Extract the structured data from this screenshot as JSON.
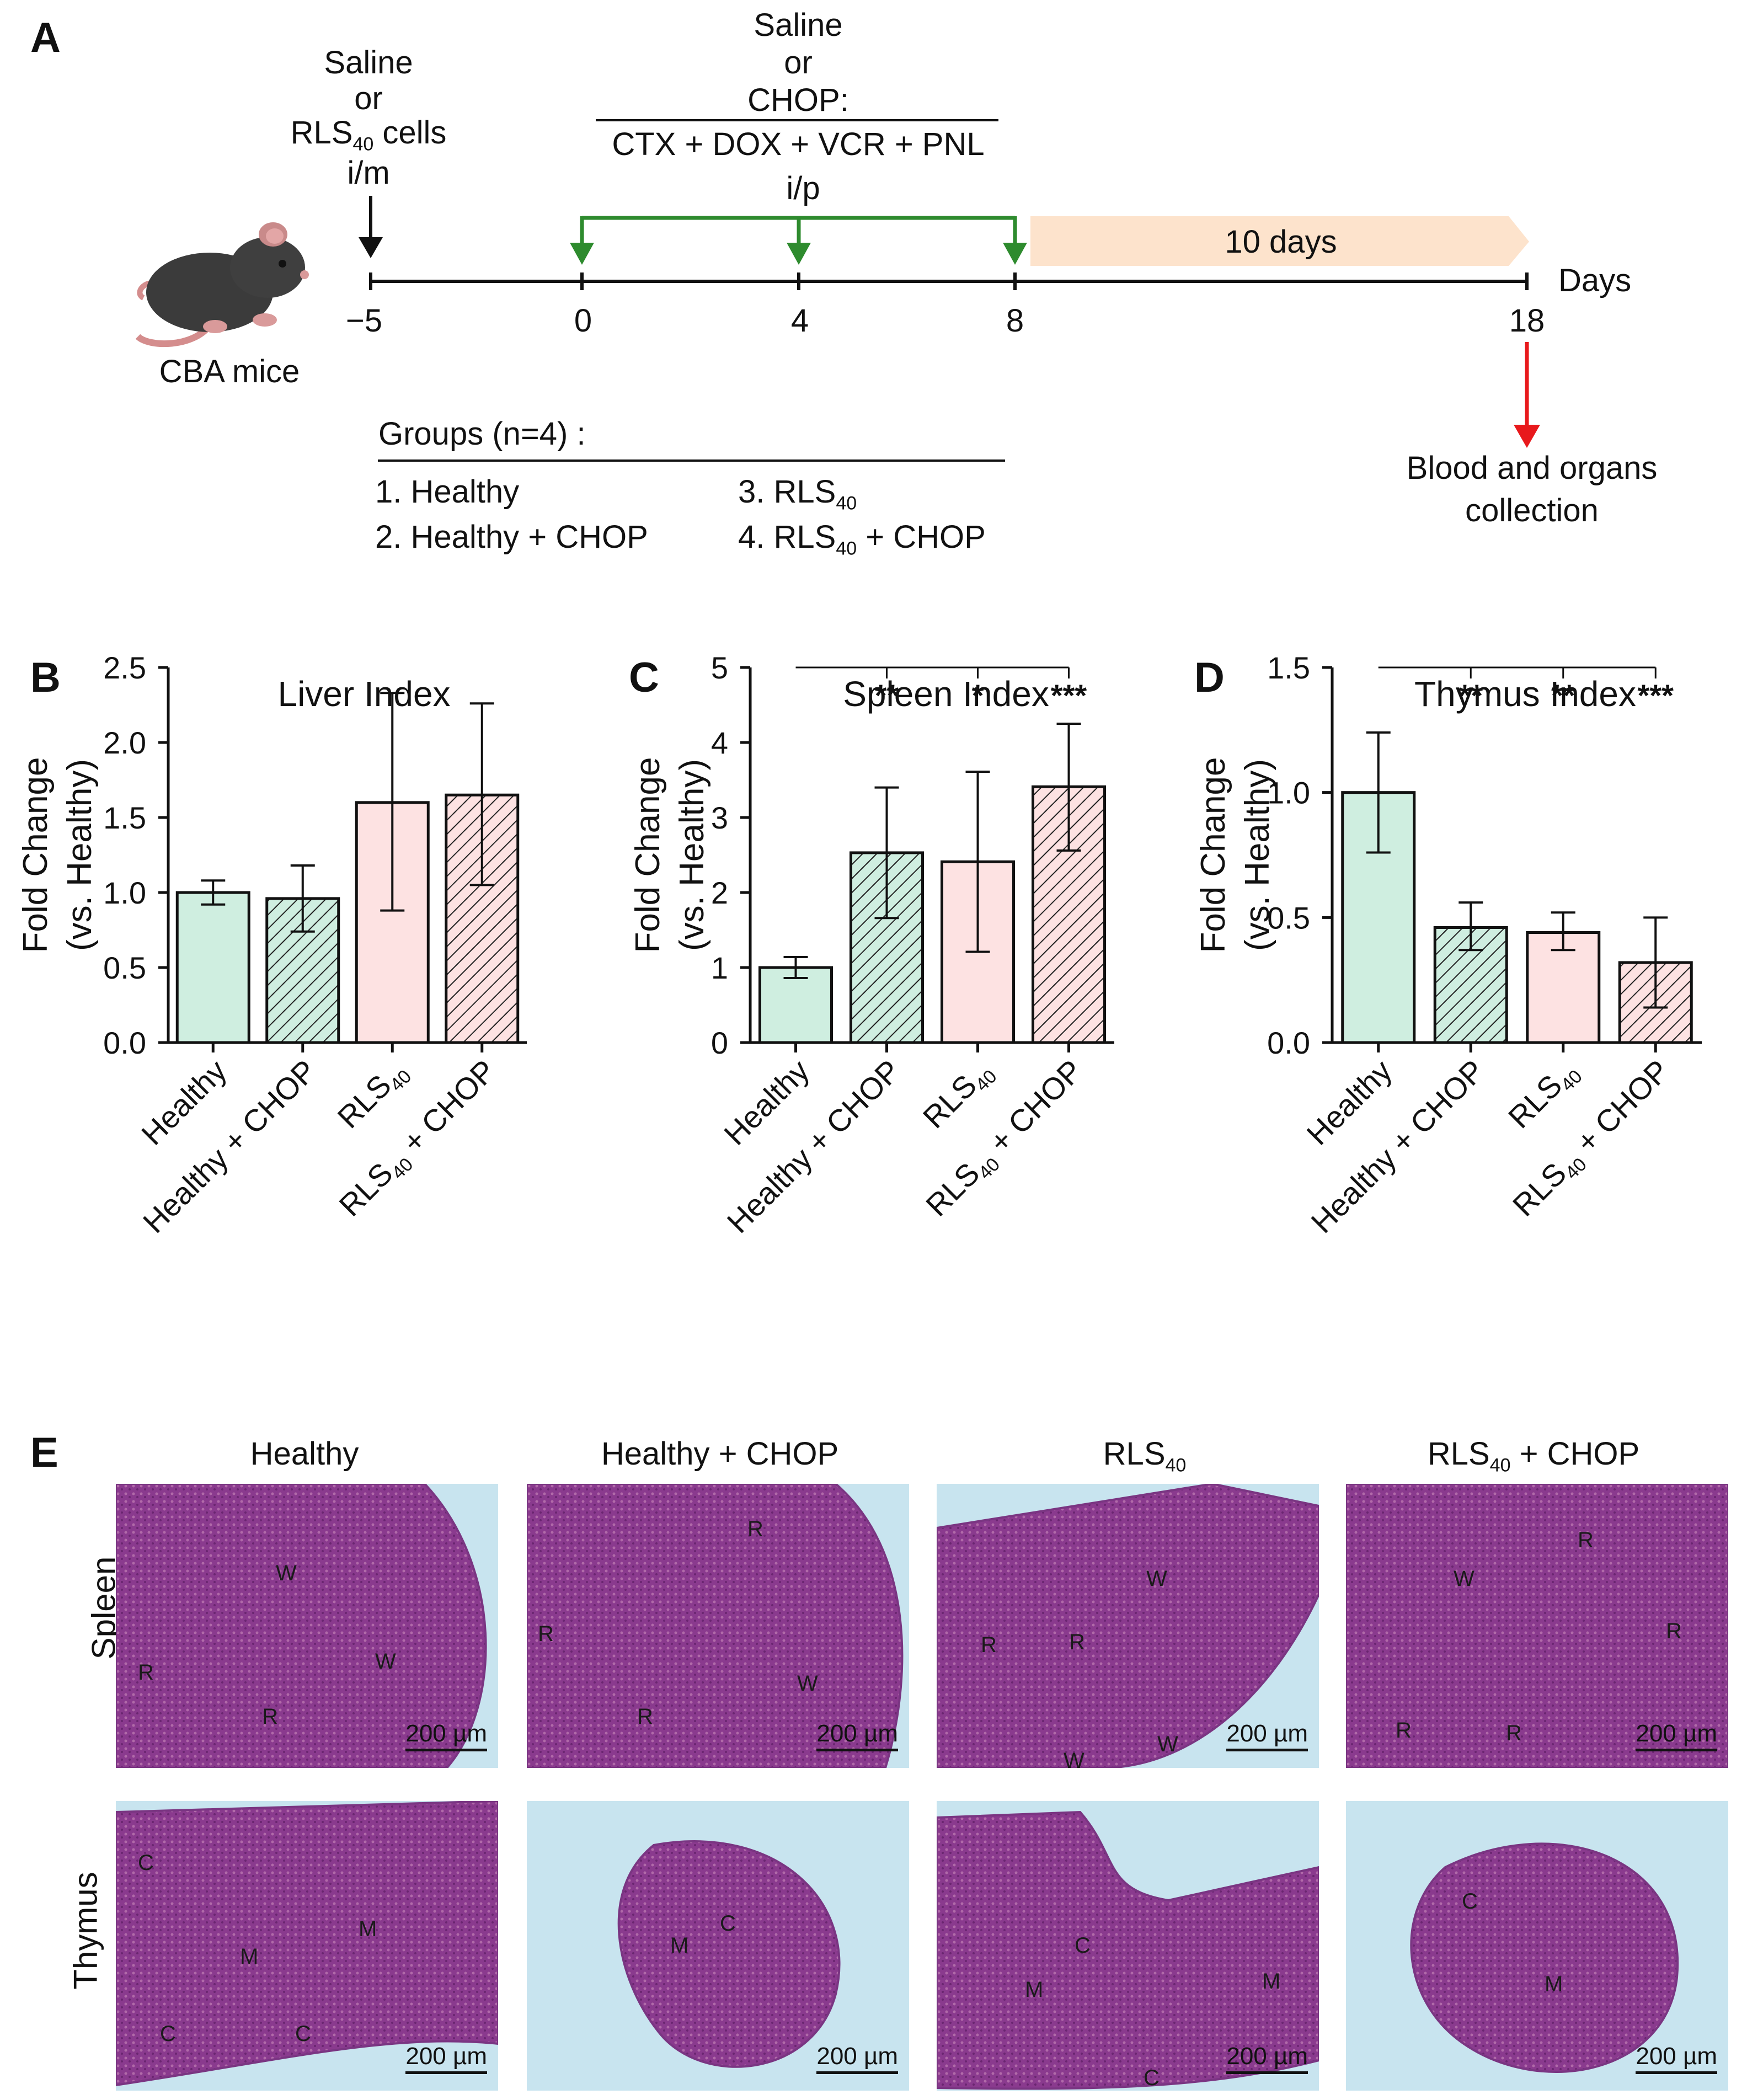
{
  "panel_A": {
    "letter": "A",
    "mouse_label": "CBA mice",
    "inoculation": {
      "line1": "Saline",
      "line2": "or",
      "line3_pre": "RLS",
      "line3_sub": "40",
      "line3_post": " cells",
      "line4": "i/m"
    },
    "treatment": {
      "line1": "Saline",
      "line2": "or",
      "line3": "CHOP:",
      "line4": "CTX + DOX + VCR + PNL",
      "line5": "i/p"
    },
    "followup": "10 days",
    "axis_unit": "Days",
    "ticks": [
      "−5",
      "0",
      "4",
      "8",
      "18"
    ],
    "collection": {
      "line1": "Blood and organs",
      "line2": "collection"
    },
    "groups_title": "Groups (n=4) :",
    "groups": {
      "g1": "1. Healthy",
      "g2": "2. Healthy + CHOP",
      "g3_pre": "3. RLS",
      "g3_sub": "40",
      "g4_pre": "4. RLS",
      "g4_sub": "40",
      "g4_post": " + CHOP"
    },
    "colors": {
      "arrow_black": "#111111",
      "arrow_green": "#2e8b2e",
      "arrow_red": "#e8191c",
      "banner": "#fde3cc"
    }
  },
  "panel_B": {
    "letter": "B"
  },
  "panel_C": {
    "letter": "C"
  },
  "panel_D": {
    "letter": "D"
  },
  "panel_E": {
    "letter": "E",
    "col_headers": {
      "c1": "Healthy",
      "c2": "Healthy + CHOP",
      "c3_pre": "RLS",
      "c3_sub": "40",
      "c4_pre": "RLS",
      "c4_sub": "40",
      "c4_post": " + CHOP"
    },
    "row_labels": {
      "spleen": "Spleen",
      "thymus": "Thymus"
    },
    "scale_bar": "200 µm",
    "spleen_labels": [
      [
        "W",
        "W",
        "R",
        "R"
      ],
      [
        "R",
        "R",
        "R",
        "W"
      ],
      [
        "R",
        "R",
        "W",
        "W",
        "W"
      ],
      [
        "W",
        "R",
        "R",
        "R",
        "R"
      ]
    ],
    "thymus_labels": [
      [
        "C",
        "M",
        "M",
        "C",
        "C"
      ],
      [
        "M",
        "C"
      ],
      [
        "C",
        "M",
        "M",
        "C"
      ],
      [
        "C",
        "M"
      ]
    ],
    "colors": {
      "tissue": "#8a3a8e",
      "tissue_light": "#b16aa9",
      "background": "#c8e4ef"
    }
  },
  "chart_data": [
    {
      "type": "bar",
      "title": "Liver Index",
      "ylabel": "Fold Change",
      "ylabel2": "(vs. Healthy)",
      "categories": [
        "Healthy",
        "Healthy + CHOP",
        "RLS40",
        "RLS40 + CHOP"
      ],
      "values": [
        1.0,
        0.96,
        1.6,
        1.65
      ],
      "errors_low": [
        0.92,
        0.74,
        0.88,
        1.05
      ],
      "errors_high": [
        1.08,
        1.18,
        2.33,
        2.26
      ],
      "ylim": [
        0,
        2.5
      ],
      "yticks": [
        "0.0",
        "0.5",
        "1.0",
        "1.5",
        "2.0",
        "2.5"
      ],
      "significance": [],
      "bar_colors": [
        "#cfeee0",
        "#cfeee0",
        "#fde2e2",
        "#fde2e2"
      ],
      "hatched": [
        false,
        true,
        false,
        true
      ]
    },
    {
      "type": "bar",
      "title": "Spleen Index",
      "ylabel": "Fold Change",
      "ylabel2": "(vs. Healthy)",
      "categories": [
        "Healthy",
        "Healthy + CHOP",
        "RLS40",
        "RLS40 + CHOP"
      ],
      "values": [
        1.0,
        2.53,
        2.41,
        3.41
      ],
      "errors_low": [
        0.86,
        1.66,
        1.21,
        2.56
      ],
      "errors_high": [
        1.14,
        3.4,
        3.61,
        4.25
      ],
      "ylim": [
        0,
        5
      ],
      "yticks": [
        "0",
        "1",
        "2",
        "3",
        "4",
        "5"
      ],
      "significance": [
        "",
        "**",
        "*",
        "***"
      ],
      "bar_colors": [
        "#cfeee0",
        "#cfeee0",
        "#fde2e2",
        "#fde2e2"
      ],
      "hatched": [
        false,
        true,
        false,
        true
      ]
    },
    {
      "type": "bar",
      "title": "Thymus Index",
      "ylabel": "Fold Change",
      "ylabel2": "(vs. Healthy)",
      "categories": [
        "Healthy",
        "Healthy + CHOP",
        "RLS40",
        "RLS40 + CHOP"
      ],
      "values": [
        1.0,
        0.46,
        0.44,
        0.32
      ],
      "errors_low": [
        0.76,
        0.37,
        0.37,
        0.14
      ],
      "errors_high": [
        1.24,
        0.56,
        0.52,
        0.5
      ],
      "ylim": [
        0,
        1.5
      ],
      "yticks": [
        "0.0",
        "0.5",
        "1.0",
        "1.5"
      ],
      "significance": [
        "",
        "**",
        "**",
        "***"
      ],
      "bar_colors": [
        "#cfeee0",
        "#cfeee0",
        "#fde2e2",
        "#fde2e2"
      ],
      "hatched": [
        false,
        true,
        false,
        true
      ]
    }
  ]
}
